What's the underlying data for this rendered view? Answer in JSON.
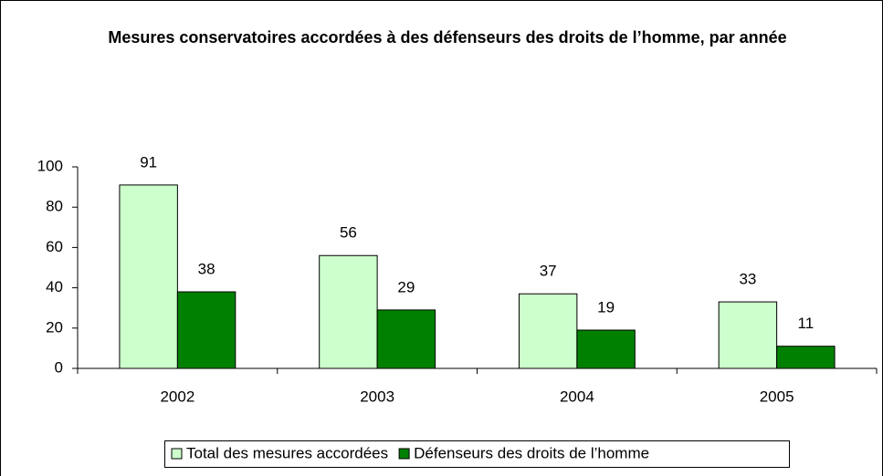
{
  "chart_data": {
    "type": "bar",
    "title": "Mesures conservatoires accordées à des défenseurs des droits de l’homme, par année",
    "categories": [
      "2002",
      "2003",
      "2004",
      "2005"
    ],
    "series": [
      {
        "name": "Total des mesures accordées",
        "color": "#ccffcc",
        "values": [
          91,
          56,
          37,
          33
        ]
      },
      {
        "name": "Défenseurs des droits de l’homme",
        "color": "#008000",
        "values": [
          38,
          29,
          19,
          11
        ]
      }
    ],
    "ylim": [
      0,
      100
    ],
    "yticks": [
      0,
      20,
      40,
      60,
      80,
      100
    ],
    "grid": false,
    "legend": "bottom"
  }
}
